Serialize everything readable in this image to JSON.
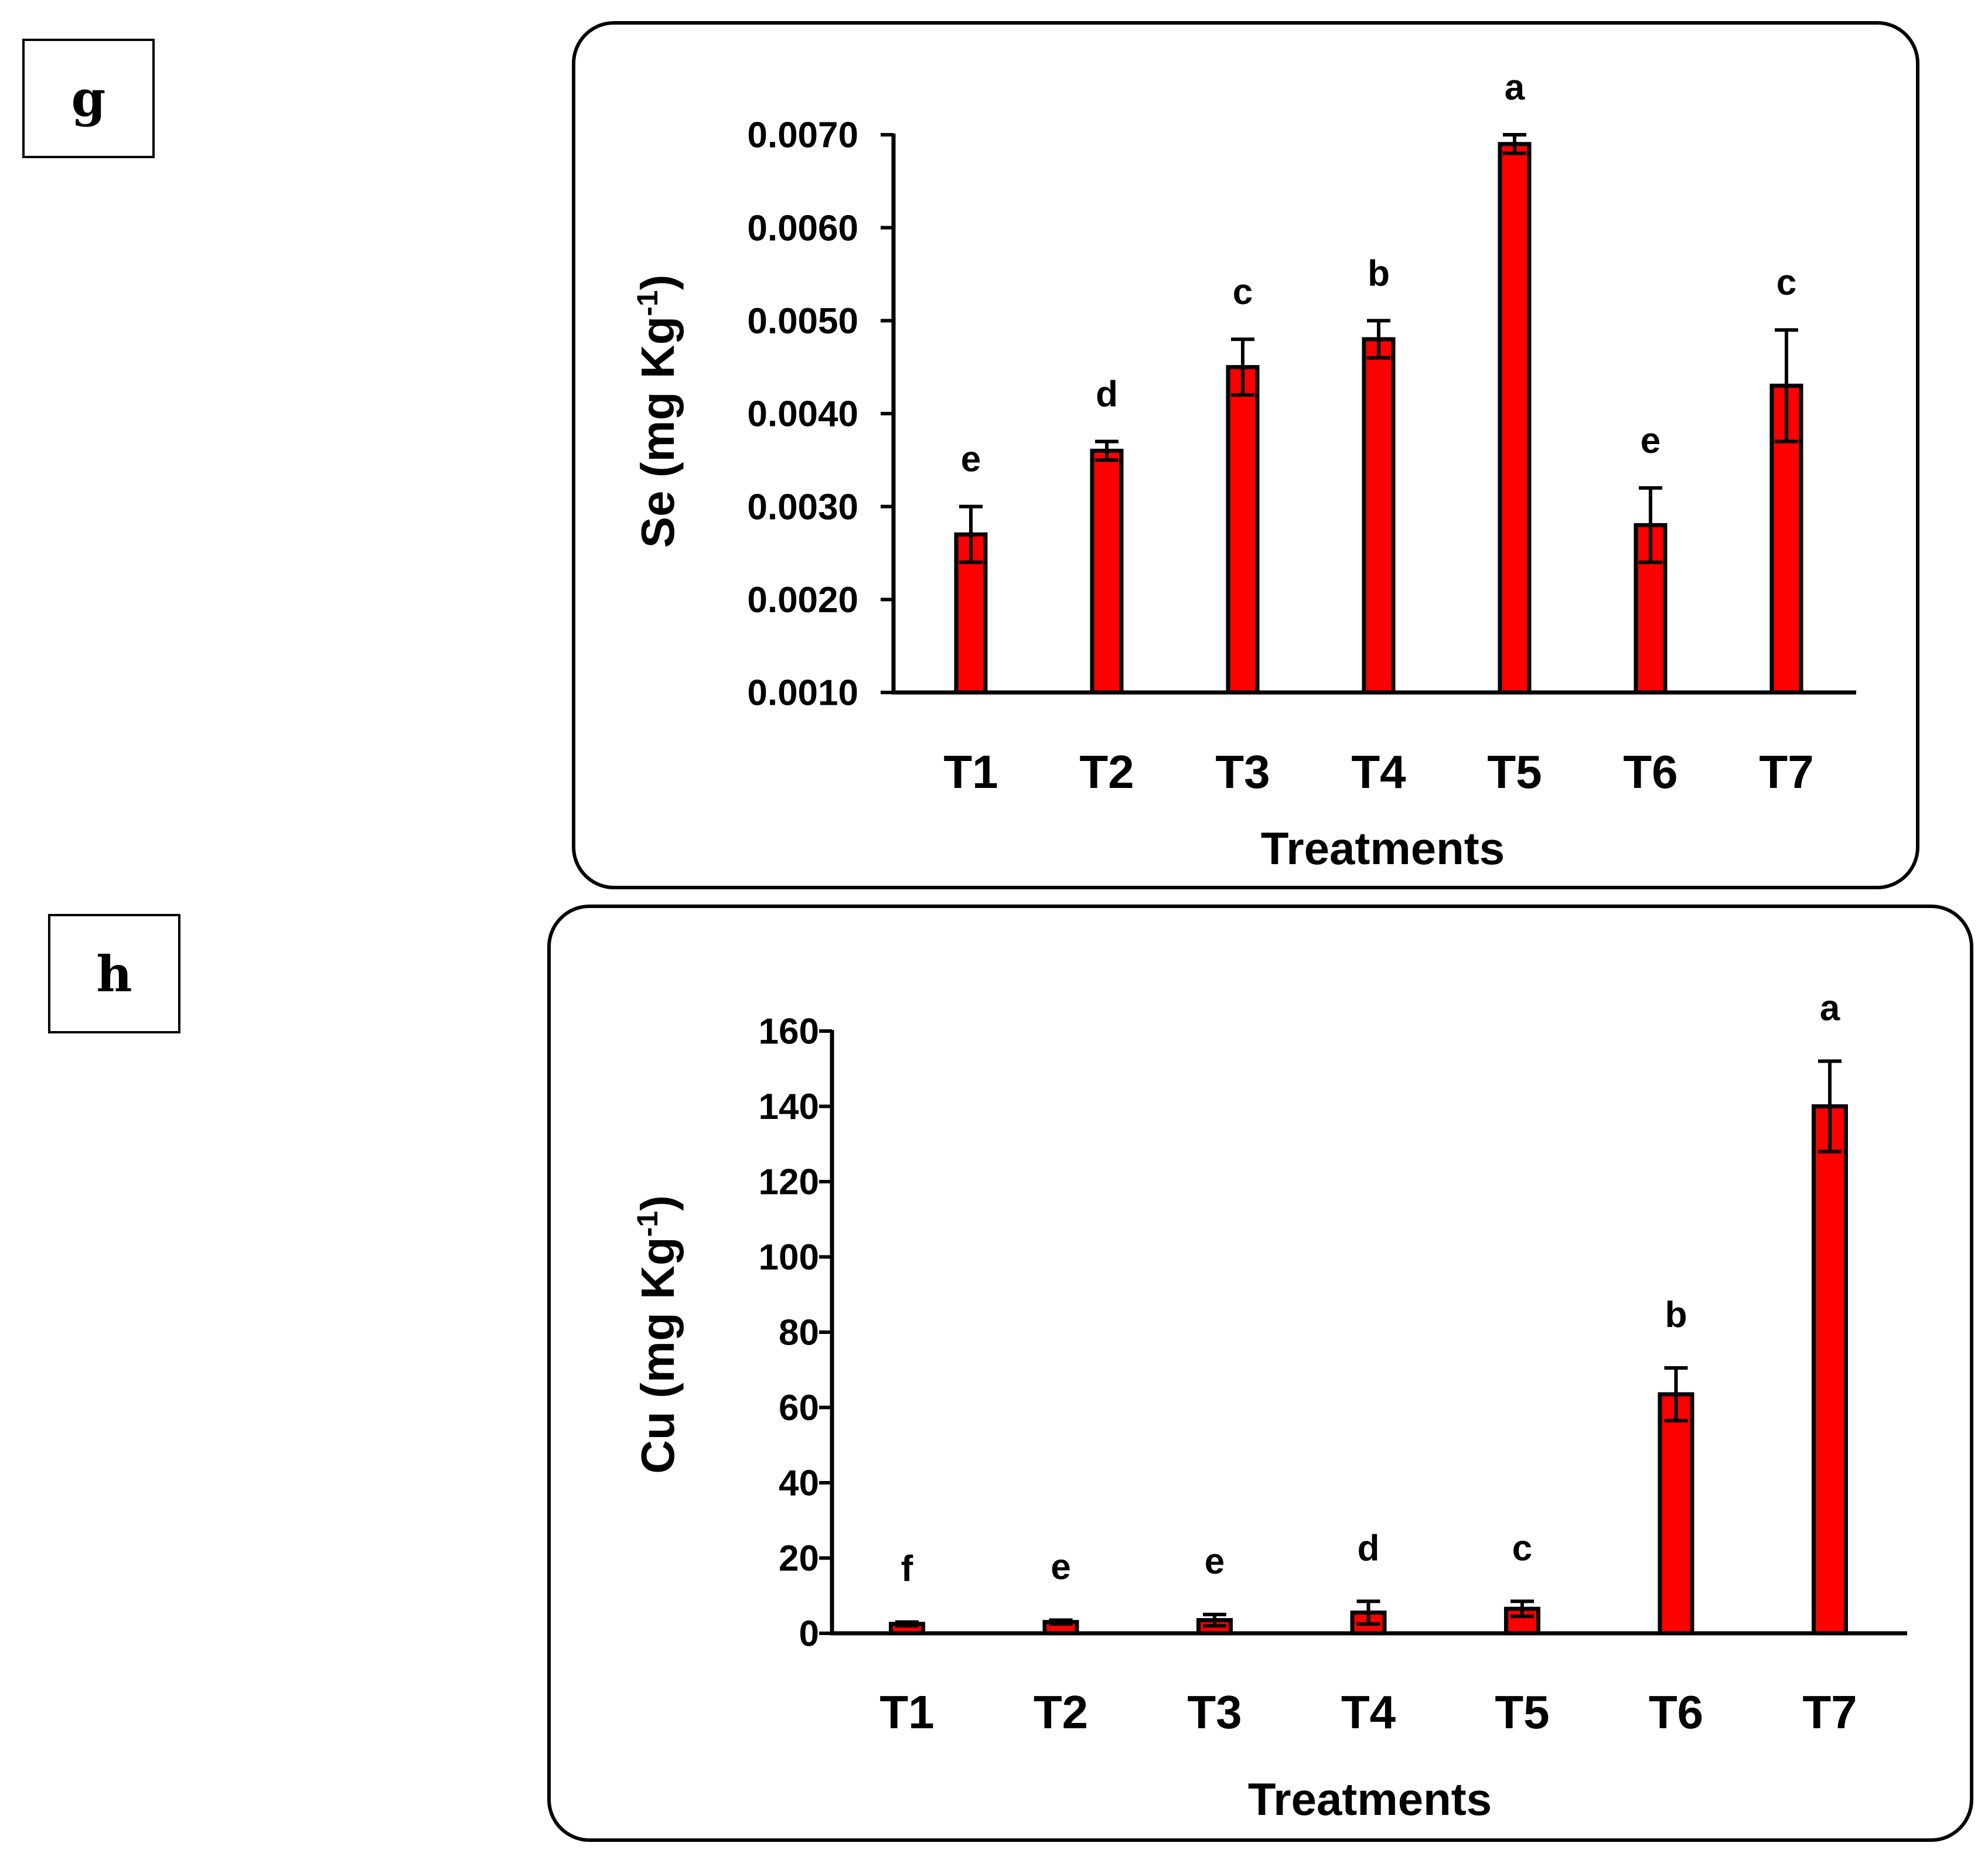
{
  "panels": [
    {
      "label": "g"
    },
    {
      "label": "h"
    }
  ],
  "colors": {
    "bar": "#ff0000",
    "axis": "#000000"
  },
  "chart_data": [
    {
      "type": "bar",
      "title": "",
      "categories": [
        "T1",
        "T2",
        "T3",
        "T4",
        "T5",
        "T6",
        "T7"
      ],
      "values": [
        0.0027,
        0.0036,
        0.0045,
        0.0048,
        0.0069,
        0.0028,
        0.0043
      ],
      "errors": [
        0.0003,
        0.0001,
        0.0003,
        0.0002,
        0.0001,
        0.0004,
        0.0006
      ],
      "letters": [
        "e",
        "d",
        "c",
        "b",
        "a",
        "e",
        "c"
      ],
      "ylim": [
        0.001,
        0.007
      ],
      "yticks": [
        0.001,
        0.002,
        0.003,
        0.004,
        0.005,
        0.006,
        0.007
      ],
      "yticklabels": [
        "0.0010",
        "0.0020",
        "0.0030",
        "0.0040",
        "0.0050",
        "0.0060",
        "0.0070"
      ],
      "xlabel": "Treatments",
      "ylabel": "Se (mg Kg",
      "ylabel_sup": "-1",
      "ylabel_end": ")"
    },
    {
      "type": "bar",
      "title": "",
      "categories": [
        "T1",
        "T2",
        "T3",
        "T4",
        "T5",
        "T6",
        "T7"
      ],
      "values": [
        2.5,
        3.0,
        3.5,
        5.5,
        6.5,
        63.5,
        140
      ],
      "errors": [
        0.5,
        0.5,
        1.5,
        3.0,
        2.0,
        7.0,
        12.0
      ],
      "letters": [
        "f",
        "e",
        "e",
        "d",
        "c",
        "b",
        "a"
      ],
      "ylim": [
        0,
        160
      ],
      "yticks": [
        0,
        20,
        40,
        60,
        80,
        100,
        120,
        140,
        160
      ],
      "yticklabels": [
        "0",
        "20",
        "40",
        "60",
        "80",
        "100",
        "120",
        "140",
        "160"
      ],
      "xlabel": "Treatments",
      "ylabel": "Cu (mg Kg",
      "ylabel_sup": "-1",
      "ylabel_end": ")"
    }
  ]
}
